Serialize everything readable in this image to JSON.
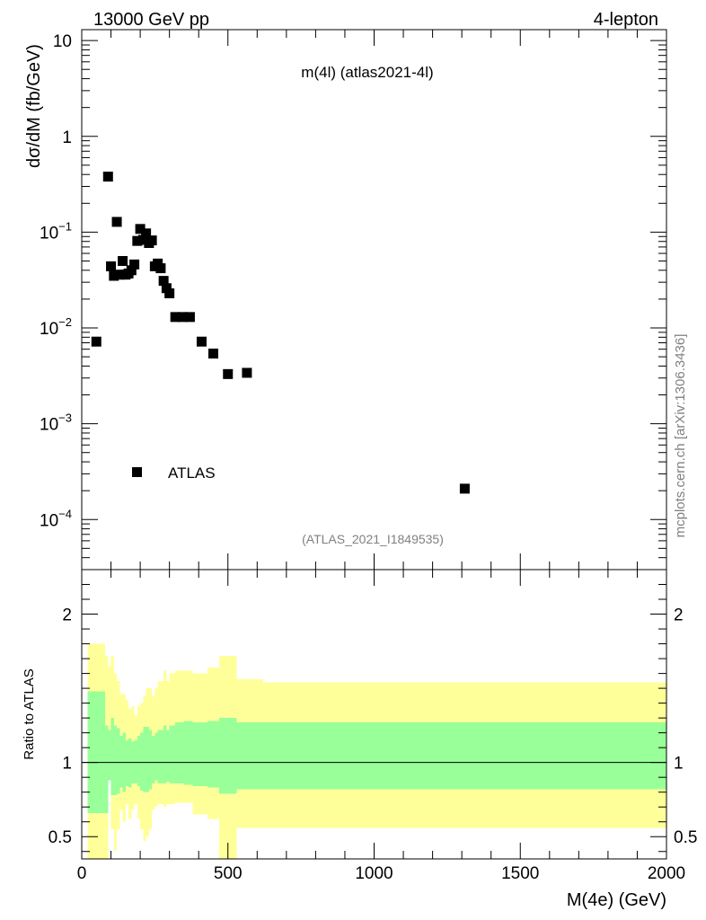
{
  "header": {
    "energy_label": "13000 GeV pp",
    "channel_label": "4-lepton"
  },
  "side_label": "mcplots.cern.ch [arXiv:1306.3436]",
  "colors": {
    "band_outer": "#ffff99",
    "band_inner": "#99ff99",
    "marker": "#000000"
  },
  "chart_data": [
    {
      "type": "scatter",
      "title": "m(4l) (atlas2021-4l)",
      "analysis_label": "(ATLAS_2021_I1849535)",
      "ylabel": "dσ/dM (fb/GeV)",
      "yscale": "log",
      "ylim": [
        3e-05,
        13
      ],
      "xlim": [
        0,
        2000
      ],
      "y_tick_labels": [
        {
          "value": 10,
          "base": "10",
          "exp": ""
        },
        {
          "value": 1,
          "base": "1",
          "exp": ""
        },
        {
          "value": 0.1,
          "base": "10",
          "exp": "−1"
        },
        {
          "value": 0.01,
          "base": "10",
          "exp": "−2"
        },
        {
          "value": 0.001,
          "base": "10",
          "exp": "−3"
        },
        {
          "value": 0.0001,
          "base": "10",
          "exp": "−4"
        }
      ],
      "legend": {
        "entry": "ATLAS",
        "placement": "lower-left"
      },
      "series": [
        {
          "name": "ATLAS",
          "x": [
            50,
            90,
            100,
            110,
            120,
            130,
            140,
            150,
            160,
            170,
            180,
            190,
            200,
            210,
            220,
            230,
            240,
            250,
            260,
            270,
            280,
            290,
            300,
            320,
            345,
            370,
            410,
            450,
            500,
            565,
            1310
          ],
          "y": [
            0.0072,
            0.38,
            0.044,
            0.035,
            0.128,
            0.036,
            0.05,
            0.036,
            0.037,
            0.04,
            0.046,
            0.081,
            0.108,
            0.083,
            0.097,
            0.077,
            0.082,
            0.044,
            0.047,
            0.042,
            0.031,
            0.026,
            0.023,
            0.013,
            0.013,
            0.013,
            0.0072,
            0.0054,
            0.0033,
            0.0034,
            0.00021
          ]
        }
      ]
    },
    {
      "type": "area",
      "ylabel": "Ratio to ATLAS",
      "xlabel": "M(4e) (GeV)",
      "xlim": [
        0,
        2000
      ],
      "ylim": [
        0.35,
        2.3
      ],
      "x_ticks": [
        0,
        500,
        1000,
        1500,
        2000
      ],
      "y_ticks": [
        0.5,
        1,
        2
      ],
      "reference_line": 1,
      "bins": [
        {
          "x0": 20,
          "x1": 80,
          "outer_lo": 0.35,
          "outer_hi": 1.8,
          "inner_lo": 0.66,
          "inner_hi": 1.48
        },
        {
          "x0": 80,
          "x1": 90,
          "outer_lo": 0.35,
          "outer_hi": 1.72,
          "inner_lo": 0.66,
          "inner_hi": 1.25
        },
        {
          "x0": 90,
          "x1": 100,
          "outer_lo": 0.88,
          "outer_hi": 1.65,
          "inner_lo": 0.88,
          "inner_hi": 1.22
        },
        {
          "x0": 100,
          "x1": 110,
          "outer_lo": 0.55,
          "outer_hi": 1.72,
          "inner_lo": 0.78,
          "inner_hi": 1.3
        },
        {
          "x0": 110,
          "x1": 120,
          "outer_lo": 0.4,
          "outer_hi": 1.6,
          "inner_lo": 0.78,
          "inner_hi": 1.25
        },
        {
          "x0": 120,
          "x1": 130,
          "outer_lo": 0.55,
          "outer_hi": 1.55,
          "inner_lo": 0.79,
          "inner_hi": 1.23
        },
        {
          "x0": 130,
          "x1": 140,
          "outer_lo": 0.68,
          "outer_hi": 1.46,
          "inner_lo": 0.83,
          "inner_hi": 1.18
        },
        {
          "x0": 140,
          "x1": 150,
          "outer_lo": 0.6,
          "outer_hi": 1.46,
          "inner_lo": 0.8,
          "inner_hi": 1.2
        },
        {
          "x0": 150,
          "x1": 160,
          "outer_lo": 0.72,
          "outer_hi": 1.42,
          "inner_lo": 0.84,
          "inner_hi": 1.15
        },
        {
          "x0": 160,
          "x1": 170,
          "outer_lo": 0.62,
          "outer_hi": 1.36,
          "inner_lo": 0.83,
          "inner_hi": 1.16
        },
        {
          "x0": 170,
          "x1": 180,
          "outer_lo": 0.68,
          "outer_hi": 1.38,
          "inner_lo": 0.86,
          "inner_hi": 1.14
        },
        {
          "x0": 180,
          "x1": 190,
          "outer_lo": 0.72,
          "outer_hi": 1.32,
          "inner_lo": 0.86,
          "inner_hi": 1.15
        },
        {
          "x0": 190,
          "x1": 200,
          "outer_lo": 0.62,
          "outer_hi": 1.38,
          "inner_lo": 0.84,
          "inner_hi": 1.18
        },
        {
          "x0": 200,
          "x1": 210,
          "outer_lo": 0.55,
          "outer_hi": 1.4,
          "inner_lo": 0.81,
          "inner_hi": 1.2
        },
        {
          "x0": 210,
          "x1": 220,
          "outer_lo": 0.47,
          "outer_hi": 1.45,
          "inner_lo": 0.8,
          "inner_hi": 1.24
        },
        {
          "x0": 220,
          "x1": 230,
          "outer_lo": 0.5,
          "outer_hi": 1.5,
          "inner_lo": 0.8,
          "inner_hi": 1.24
        },
        {
          "x0": 230,
          "x1": 240,
          "outer_lo": 0.55,
          "outer_hi": 1.5,
          "inner_lo": 0.82,
          "inner_hi": 1.22
        },
        {
          "x0": 240,
          "x1": 250,
          "outer_lo": 0.68,
          "outer_hi": 1.45,
          "inner_lo": 0.86,
          "inner_hi": 1.18
        },
        {
          "x0": 250,
          "x1": 260,
          "outer_lo": 0.7,
          "outer_hi": 1.5,
          "inner_lo": 0.88,
          "inner_hi": 1.2
        },
        {
          "x0": 260,
          "x1": 270,
          "outer_lo": 0.72,
          "outer_hi": 1.55,
          "inner_lo": 0.86,
          "inner_hi": 1.22
        },
        {
          "x0": 270,
          "x1": 280,
          "outer_lo": 0.72,
          "outer_hi": 1.55,
          "inner_lo": 0.86,
          "inner_hi": 1.22
        },
        {
          "x0": 280,
          "x1": 290,
          "outer_lo": 0.7,
          "outer_hi": 1.62,
          "inner_lo": 0.86,
          "inner_hi": 1.25
        },
        {
          "x0": 290,
          "x1": 300,
          "outer_lo": 0.72,
          "outer_hi": 1.55,
          "inner_lo": 0.87,
          "inner_hi": 1.22
        },
        {
          "x0": 300,
          "x1": 320,
          "outer_lo": 0.72,
          "outer_hi": 1.6,
          "inner_lo": 0.86,
          "inner_hi": 1.25
        },
        {
          "x0": 320,
          "x1": 350,
          "outer_lo": 0.73,
          "outer_hi": 1.62,
          "inner_lo": 0.86,
          "inner_hi": 1.27
        },
        {
          "x0": 350,
          "x1": 380,
          "outer_lo": 0.73,
          "outer_hi": 1.62,
          "inner_lo": 0.85,
          "inner_hi": 1.28
        },
        {
          "x0": 380,
          "x1": 430,
          "outer_lo": 0.65,
          "outer_hi": 1.6,
          "inner_lo": 0.84,
          "inner_hi": 1.27
        },
        {
          "x0": 430,
          "x1": 470,
          "outer_lo": 0.62,
          "outer_hi": 1.64,
          "inner_lo": 0.83,
          "inner_hi": 1.28
        },
        {
          "x0": 470,
          "x1": 530,
          "outer_lo": 0.35,
          "outer_hi": 1.72,
          "inner_lo": 0.79,
          "inner_hi": 1.3
        },
        {
          "x0": 530,
          "x1": 620,
          "outer_lo": 0.56,
          "outer_hi": 1.56,
          "inner_lo": 0.82,
          "inner_hi": 1.27
        },
        {
          "x0": 620,
          "x1": 2000,
          "outer_lo": 0.56,
          "outer_hi": 1.54,
          "inner_lo": 0.82,
          "inner_hi": 1.27
        }
      ]
    }
  ]
}
